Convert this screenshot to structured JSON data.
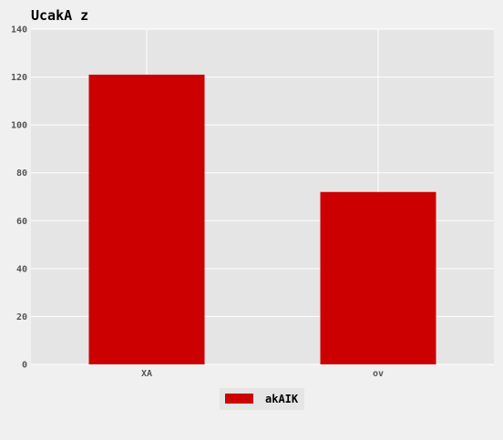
{
  "chart_data": {
    "type": "bar",
    "title": "UcakA z",
    "categories": [
      "XA",
      "ov"
    ],
    "series": [
      {
        "name": "akAIK",
        "values": [
          121,
          72
        ],
        "color": "#cc0000"
      }
    ],
    "ylim": [
      0,
      140
    ],
    "yticks": [
      0,
      20,
      40,
      60,
      80,
      100,
      120,
      140
    ],
    "xlabel": "",
    "ylabel": "",
    "grid": true,
    "legend_position": "bottom-center",
    "colors": {
      "plot_background": "#e5e5e5",
      "figure_background": "#f0f0f0",
      "grid": "#ffffff"
    }
  }
}
